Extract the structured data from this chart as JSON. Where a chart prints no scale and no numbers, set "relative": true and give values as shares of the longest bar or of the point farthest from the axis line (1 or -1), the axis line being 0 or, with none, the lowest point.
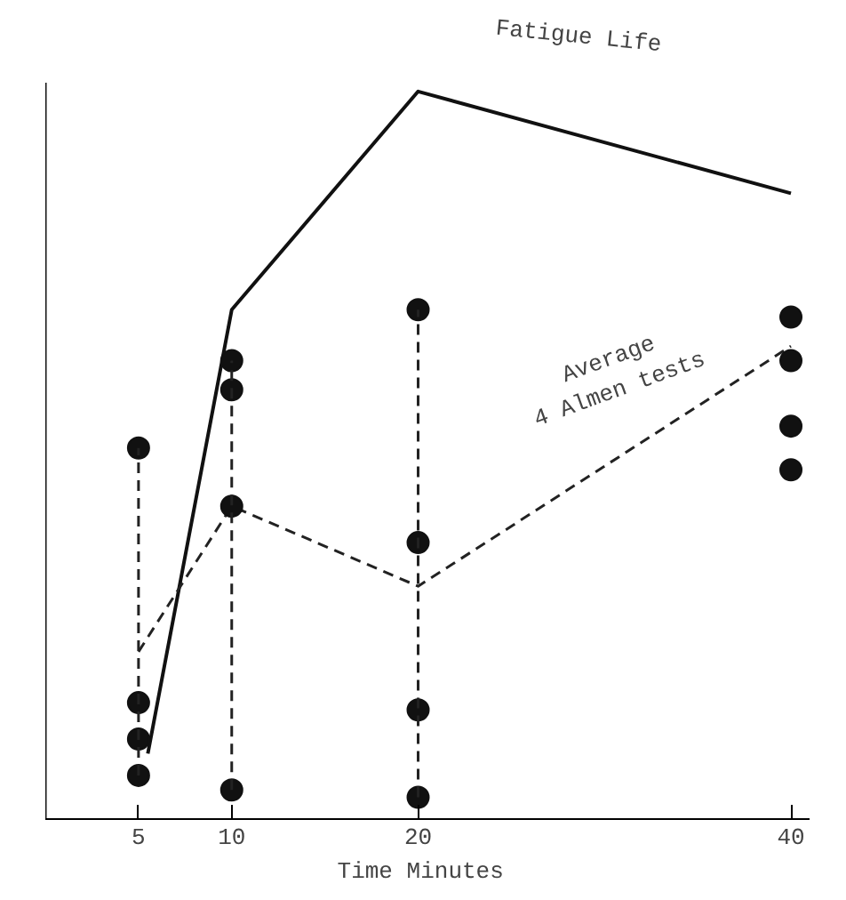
{
  "chart_data": {
    "type": "line",
    "relative": true,
    "xlabel": "Time  Minutes",
    "xlim": [
      0,
      41
    ],
    "xticks": [
      5,
      10,
      20,
      40
    ],
    "tick_labels": "x",
    "grid": false,
    "series": [
      {
        "color": "#111111",
        "line_style": "solid",
        "marker": "none",
        "x": [
          5.5,
          10,
          20,
          40
        ],
        "values": [
          0.09,
          0.7,
          1.0,
          0.86
        ]
      },
      {
        "color": "#222222",
        "line_style": "dashed",
        "marker": "none",
        "x": [
          5,
          10,
          20,
          40
        ],
        "values": [
          0.23,
          0.43,
          0.32,
          0.65
        ]
      },
      {
        "color": "#111111",
        "type": "scatter",
        "marker": "circle",
        "x": [
          5,
          5,
          5,
          5,
          10,
          10,
          10,
          10,
          20,
          20,
          20,
          20,
          40,
          40,
          40,
          40
        ],
        "values": [
          0.51,
          0.16,
          0.11,
          0.06,
          0.63,
          0.59,
          0.43,
          0.04,
          0.7,
          0.38,
          0.15,
          0.03,
          0.69,
          0.63,
          0.54,
          0.48
        ]
      },
      {
        "color": "#222222",
        "line_style": "dashed",
        "marker": "none",
        "x": [
          5,
          5
        ],
        "values": [
          0.06,
          0.51
        ]
      },
      {
        "color": "#222222",
        "line_style": "dashed",
        "marker": "none",
        "x": [
          10,
          10
        ],
        "values": [
          0.04,
          0.63
        ]
      },
      {
        "color": "#222222",
        "line_style": "dashed",
        "marker": "none",
        "x": [
          20,
          20
        ],
        "values": [
          0.03,
          0.7
        ]
      }
    ],
    "annotations": [
      "Fatigue Life",
      "Average\n4 Almen tests"
    ]
  }
}
